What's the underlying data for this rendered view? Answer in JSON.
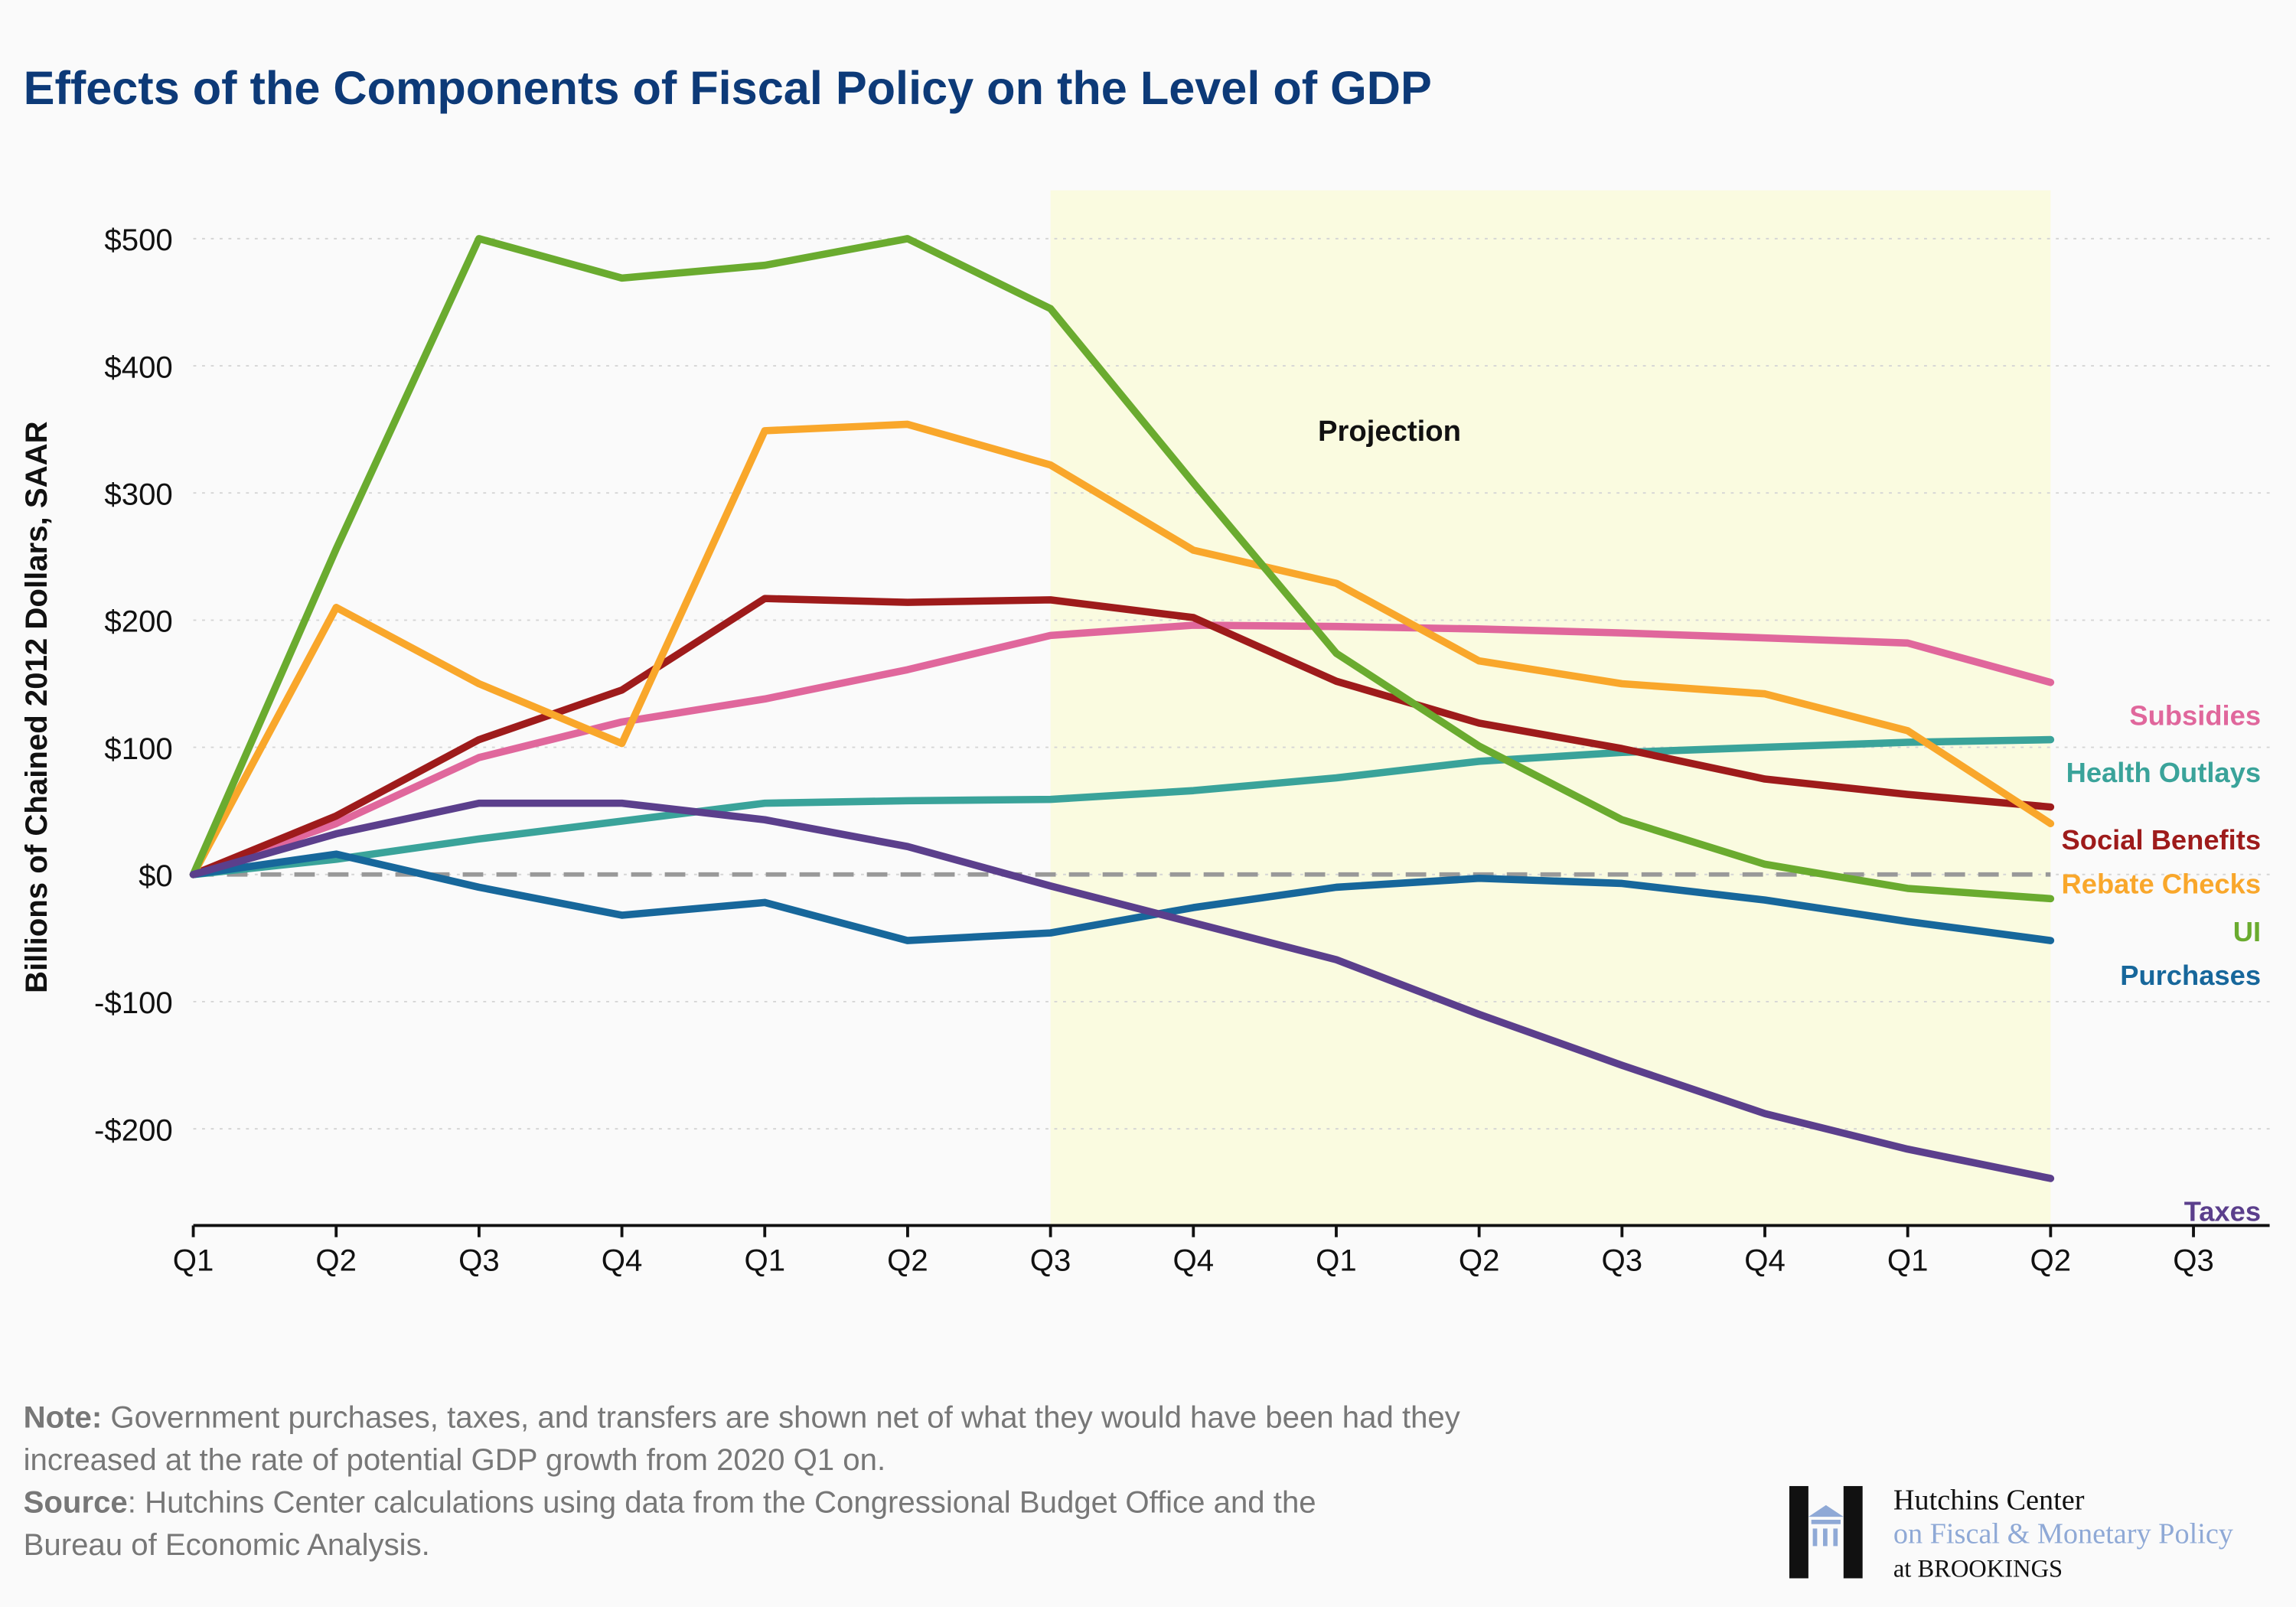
{
  "chart_data": {
    "type": "line",
    "title": "Effects of the Components of Fiscal Policy on the Level of GDP",
    "y_label": "Billions of Chained 2012 Dollars, SAAR",
    "categories": [
      "Q1",
      "Q2",
      "Q3",
      "Q4",
      "Q1",
      "Q2",
      "Q3",
      "Q4",
      "Q1",
      "Q2",
      "Q3",
      "Q4",
      "Q1",
      "Q2",
      "Q3"
    ],
    "series": [
      {
        "name": "Subsidies",
        "color": "#e0679c",
        "values": [
          0,
          40,
          92,
          120,
          138,
          161,
          188,
          196,
          195,
          193,
          190,
          186,
          182,
          151,
          null
        ]
      },
      {
        "name": "Health Outlays",
        "color": "#3aa39a",
        "values": [
          0,
          12,
          28,
          42,
          56,
          58,
          59,
          66,
          76,
          89,
          96,
          100,
          104,
          106,
          null
        ]
      },
      {
        "name": "Social Benefits",
        "color": "#9e1b1b",
        "values": [
          0,
          46,
          106,
          145,
          217,
          214,
          216,
          202,
          152,
          119,
          99,
          75,
          63,
          53,
          null
        ]
      },
      {
        "name": "Rebate Checks",
        "color": "#f9a72b",
        "values": [
          0,
          210,
          150,
          103,
          349,
          354,
          322,
          255,
          229,
          168,
          150,
          142,
          113,
          40,
          null
        ]
      },
      {
        "name": "UI",
        "color": "#6aab2f",
        "values": [
          0,
          256,
          500,
          469,
          479,
          500,
          445,
          308,
          174,
          101,
          43,
          8,
          -11,
          -19,
          null
        ]
      },
      {
        "name": "Purchases",
        "color": "#17679b",
        "values": [
          0,
          16,
          -10,
          -32,
          -22,
          -52,
          -46,
          -26,
          -10,
          -3,
          -7,
          -20,
          -37,
          -52,
          null
        ]
      },
      {
        "name": "Taxes",
        "color": "#5b3f8c",
        "values": [
          0,
          32,
          56,
          56,
          43,
          22,
          -9,
          -38,
          -67,
          -110,
          -150,
          -188,
          -216,
          -239,
          null
        ]
      }
    ],
    "ylim": [
      -276,
      538
    ],
    "yticks": [
      {
        "value": -200,
        "label": "-$200"
      },
      {
        "value": -100,
        "label": "-$100"
      },
      {
        "value": 0,
        "label": "$0"
      },
      {
        "value": 100,
        "label": "$100"
      },
      {
        "value": 200,
        "label": "$200"
      },
      {
        "value": 300,
        "label": "$300"
      },
      {
        "value": 400,
        "label": "$400"
      },
      {
        "value": 500,
        "label": "$500"
      }
    ],
    "grid": true,
    "shaded_region": {
      "label": "Projection",
      "start": 6,
      "end": 13
    }
  },
  "footer": {
    "note": {
      "label": "Note:",
      "lines": [
        " Government purchases, taxes, and transfers are shown net of what they would have been had they",
        "increased at the rate of potential GDP growth from 2020 Q1 on."
      ]
    },
    "source": {
      "label": "Source",
      "lines": [
        ": Hutchins Center calculations using data from the Congressional Budget Office and the",
        "Bureau of Economic Analysis."
      ]
    }
  },
  "logo": {
    "line1": "Hutchins Center",
    "line2": "on Fiscal & Monetary Policy",
    "line3": "at BROOKINGS"
  }
}
